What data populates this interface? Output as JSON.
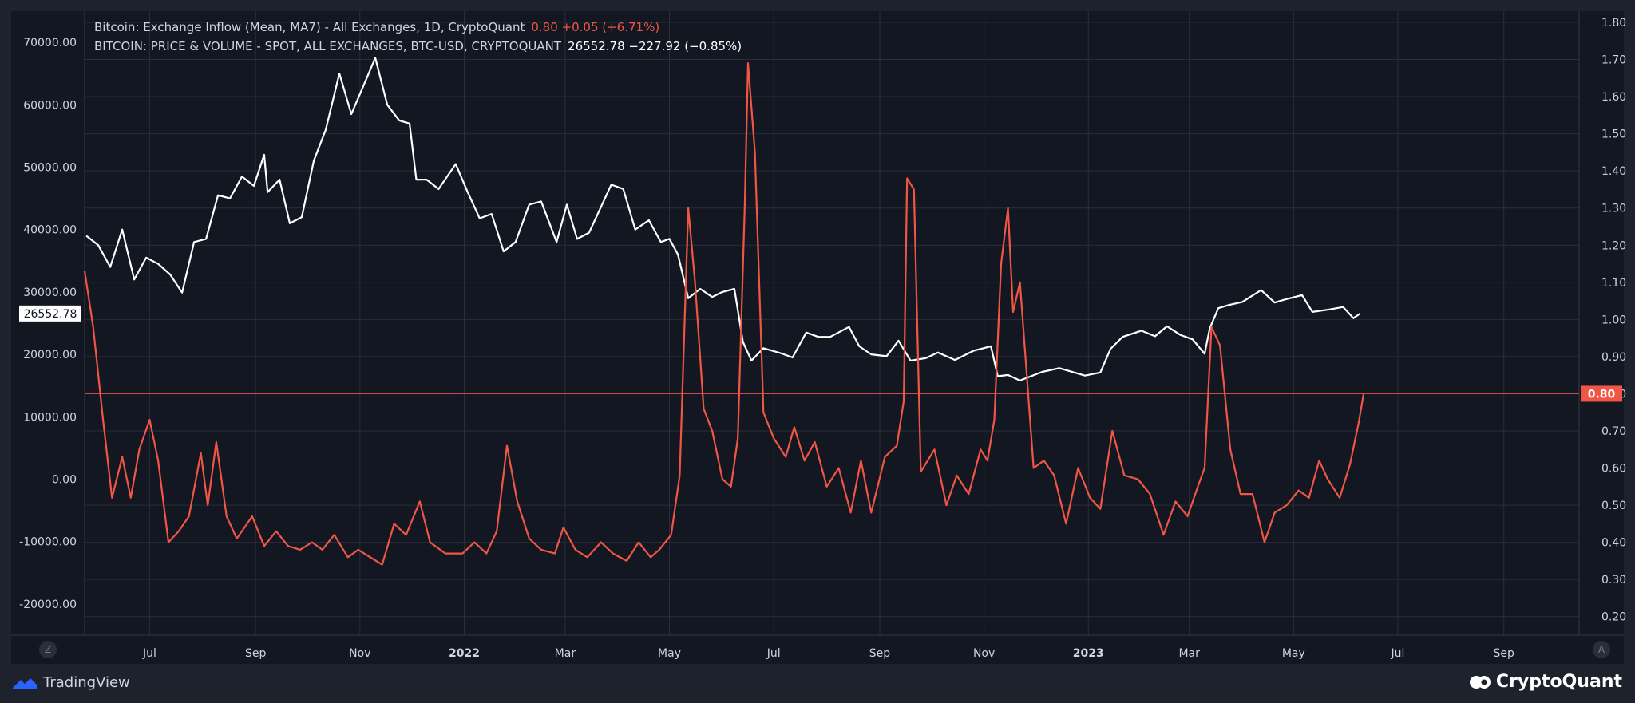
{
  "legend": {
    "line1_label": "Bitcoin: Exchange Inflow (Mean, MA7) - All Exchanges, 1D, CryptoQuant",
    "line1_value": "0.80  +0.05 (+6.71%)",
    "line2_label": "BITCOIN: PRICE & VOLUME - SPOT, ALL EXCHANGES, BTC-USD, CRYPTOQUANT",
    "line2_value": "26552.78  −227.92 (−0.85%)"
  },
  "footer": {
    "left_brand": "TradingView",
    "right_brand": "CryptoQuant"
  },
  "axis_buttons": {
    "left": "Z",
    "right": "A"
  },
  "colors": {
    "background": "#131722",
    "frame": "#1e222d",
    "price_line": "#ffffff",
    "inflow_line": "#f05545",
    "grid": "#2a2e39",
    "axis_text": "#d1d4dc"
  },
  "chart_data": {
    "type": "line",
    "x_ticks": [
      "Jul",
      "Sep",
      "Nov",
      "2022",
      "Mar",
      "May",
      "Jul",
      "Sep",
      "Nov",
      "2023",
      "Mar",
      "May",
      "Jul",
      "Sep"
    ],
    "x_tick_dates": [
      "2021-07-01",
      "2021-09-01",
      "2021-11-01",
      "2022-01-01",
      "2022-03-01",
      "2022-05-01",
      "2022-07-01",
      "2022-09-01",
      "2022-11-01",
      "2023-01-01",
      "2023-03-01",
      "2023-05-01",
      "2023-07-01",
      "2023-09-01"
    ],
    "xlim": [
      "2021-05-24",
      "2023-10-15"
    ],
    "left_axis": {
      "ylim": [
        -25000,
        75000
      ],
      "ticks": [
        "70000.00",
        "60000.00",
        "50000.00",
        "40000.00",
        "30000.00",
        "20000.00",
        "10000.00",
        "0.00",
        "-10000.00",
        "-20000.00"
      ]
    },
    "right_axis": {
      "ylim": [
        0.15,
        1.83
      ],
      "ticks": [
        "1.80",
        "1.70",
        "1.60",
        "1.50",
        "1.40",
        "1.30",
        "1.20",
        "1.10",
        "1.00",
        "0.90",
        "0.80",
        "0.70",
        "0.60",
        "0.50",
        "0.40",
        "0.30",
        "0.20"
      ]
    },
    "last_price_label": "26552.78",
    "last_price": 26552.78,
    "last_inflow_label": "0.80",
    "last_inflow": 0.8,
    "series": [
      {
        "name": "BITCOIN: PRICE & VOLUME - SPOT, ALL EXCHANGES, BTC-USD, CRYPTOQUANT",
        "axis": "left",
        "points": [
          [
            "2021-05-25",
            39000
          ],
          [
            "2021-06-01",
            37500
          ],
          [
            "2021-06-08",
            34000
          ],
          [
            "2021-06-15",
            40000
          ],
          [
            "2021-06-22",
            32000
          ],
          [
            "2021-06-29",
            35500
          ],
          [
            "2021-07-06",
            34500
          ],
          [
            "2021-07-13",
            32800
          ],
          [
            "2021-07-20",
            29900
          ],
          [
            "2021-07-27",
            38000
          ],
          [
            "2021-08-03",
            38500
          ],
          [
            "2021-08-10",
            45500
          ],
          [
            "2021-08-17",
            45000
          ],
          [
            "2021-08-24",
            48500
          ],
          [
            "2021-08-31",
            47000
          ],
          [
            "2021-09-06",
            52000
          ],
          [
            "2021-09-08",
            46000
          ],
          [
            "2021-09-15",
            48000
          ],
          [
            "2021-09-21",
            41000
          ],
          [
            "2021-09-28",
            42000
          ],
          [
            "2021-10-05",
            51000
          ],
          [
            "2021-10-12",
            56000
          ],
          [
            "2021-10-20",
            65000
          ],
          [
            "2021-10-27",
            58500
          ],
          [
            "2021-11-03",
            63000
          ],
          [
            "2021-11-10",
            67500
          ],
          [
            "2021-11-17",
            60000
          ],
          [
            "2021-11-24",
            57500
          ],
          [
            "2021-11-30",
            57000
          ],
          [
            "2021-12-04",
            48000
          ],
          [
            "2021-12-10",
            48000
          ],
          [
            "2021-12-17",
            46500
          ],
          [
            "2021-12-27",
            50500
          ],
          [
            "2022-01-03",
            46000
          ],
          [
            "2022-01-10",
            41800
          ],
          [
            "2022-01-17",
            42500
          ],
          [
            "2022-01-24",
            36500
          ],
          [
            "2022-01-31",
            38000
          ],
          [
            "2022-02-08",
            44000
          ],
          [
            "2022-02-15",
            44500
          ],
          [
            "2022-02-24",
            38000
          ],
          [
            "2022-03-02",
            44000
          ],
          [
            "2022-03-08",
            38500
          ],
          [
            "2022-03-15",
            39500
          ],
          [
            "2022-03-28",
            47200
          ],
          [
            "2022-04-04",
            46500
          ],
          [
            "2022-04-11",
            40000
          ],
          [
            "2022-04-19",
            41500
          ],
          [
            "2022-04-26",
            38000
          ],
          [
            "2022-05-01",
            38500
          ],
          [
            "2022-05-06",
            36000
          ],
          [
            "2022-05-12",
            29000
          ],
          [
            "2022-05-19",
            30500
          ],
          [
            "2022-05-26",
            29200
          ],
          [
            "2022-06-01",
            30000
          ],
          [
            "2022-06-08",
            30500
          ],
          [
            "2022-06-13",
            22000
          ],
          [
            "2022-06-18",
            19000
          ],
          [
            "2022-06-25",
            21000
          ],
          [
            "2022-07-05",
            20200
          ],
          [
            "2022-07-12",
            19500
          ],
          [
            "2022-07-20",
            23500
          ],
          [
            "2022-07-27",
            22800
          ],
          [
            "2022-08-03",
            22800
          ],
          [
            "2022-08-14",
            24400
          ],
          [
            "2022-08-20",
            21300
          ],
          [
            "2022-08-27",
            20000
          ],
          [
            "2022-09-05",
            19700
          ],
          [
            "2022-09-12",
            22200
          ],
          [
            "2022-09-19",
            19000
          ],
          [
            "2022-09-28",
            19400
          ],
          [
            "2022-10-05",
            20300
          ],
          [
            "2022-10-15",
            19100
          ],
          [
            "2022-10-26",
            20600
          ],
          [
            "2022-11-05",
            21300
          ],
          [
            "2022-11-09",
            16500
          ],
          [
            "2022-11-15",
            16700
          ],
          [
            "2022-11-22",
            15800
          ],
          [
            "2022-12-05",
            17200
          ],
          [
            "2022-12-15",
            17800
          ],
          [
            "2022-12-30",
            16600
          ],
          [
            "2023-01-08",
            17100
          ],
          [
            "2023-01-14",
            20900
          ],
          [
            "2023-01-21",
            22800
          ],
          [
            "2023-02-01",
            23800
          ],
          [
            "2023-02-09",
            22900
          ],
          [
            "2023-02-16",
            24500
          ],
          [
            "2023-02-24",
            23100
          ],
          [
            "2023-03-03",
            22400
          ],
          [
            "2023-03-10",
            20100
          ],
          [
            "2023-03-13",
            24200
          ],
          [
            "2023-03-18",
            27400
          ],
          [
            "2023-03-24",
            27900
          ],
          [
            "2023-04-01",
            28400
          ],
          [
            "2023-04-12",
            30300
          ],
          [
            "2023-04-20",
            28300
          ],
          [
            "2023-04-26",
            28800
          ],
          [
            "2023-05-06",
            29500
          ],
          [
            "2023-05-12",
            26800
          ],
          [
            "2023-05-22",
            27200
          ],
          [
            "2023-05-30",
            27600
          ],
          [
            "2023-06-05",
            25800
          ],
          [
            "2023-06-09",
            26552.78
          ]
        ]
      },
      {
        "name": "Bitcoin: Exchange Inflow (Mean, MA7) - All Exchanges, 1D, CryptoQuant",
        "axis": "right",
        "points": [
          [
            "2021-05-24",
            1.13
          ],
          [
            "2021-05-29",
            0.98
          ],
          [
            "2021-06-04",
            0.72
          ],
          [
            "2021-06-09",
            0.52
          ],
          [
            "2021-06-15",
            0.63
          ],
          [
            "2021-06-20",
            0.52
          ],
          [
            "2021-06-25",
            0.65
          ],
          [
            "2021-07-01",
            0.73
          ],
          [
            "2021-07-06",
            0.62
          ],
          [
            "2021-07-12",
            0.4
          ],
          [
            "2021-07-18",
            0.43
          ],
          [
            "2021-07-24",
            0.47
          ],
          [
            "2021-07-31",
            0.64
          ],
          [
            "2021-08-04",
            0.5
          ],
          [
            "2021-08-09",
            0.67
          ],
          [
            "2021-08-15",
            0.47
          ],
          [
            "2021-08-21",
            0.41
          ],
          [
            "2021-08-30",
            0.47
          ],
          [
            "2021-09-06",
            0.39
          ],
          [
            "2021-09-13",
            0.43
          ],
          [
            "2021-09-20",
            0.39
          ],
          [
            "2021-09-27",
            0.38
          ],
          [
            "2021-10-04",
            0.4
          ],
          [
            "2021-10-10",
            0.38
          ],
          [
            "2021-10-17",
            0.42
          ],
          [
            "2021-10-25",
            0.36
          ],
          [
            "2021-10-31",
            0.38
          ],
          [
            "2021-11-07",
            0.36
          ],
          [
            "2021-11-14",
            0.34
          ],
          [
            "2021-11-21",
            0.45
          ],
          [
            "2021-11-28",
            0.42
          ],
          [
            "2021-12-06",
            0.51
          ],
          [
            "2021-12-12",
            0.4
          ],
          [
            "2021-12-21",
            0.37
          ],
          [
            "2021-12-31",
            0.37
          ],
          [
            "2022-01-07",
            0.4
          ],
          [
            "2022-01-14",
            0.37
          ],
          [
            "2022-01-20",
            0.43
          ],
          [
            "2022-01-26",
            0.66
          ],
          [
            "2022-02-01",
            0.51
          ],
          [
            "2022-02-08",
            0.41
          ],
          [
            "2022-02-15",
            0.38
          ],
          [
            "2022-02-23",
            0.37
          ],
          [
            "2022-02-28",
            0.44
          ],
          [
            "2022-03-07",
            0.38
          ],
          [
            "2022-03-14",
            0.36
          ],
          [
            "2022-03-22",
            0.4
          ],
          [
            "2022-03-29",
            0.37
          ],
          [
            "2022-04-06",
            0.35
          ],
          [
            "2022-04-13",
            0.4
          ],
          [
            "2022-04-20",
            0.36
          ],
          [
            "2022-04-25",
            0.38
          ],
          [
            "2022-05-02",
            0.42
          ],
          [
            "2022-05-07",
            0.58
          ],
          [
            "2022-05-12",
            1.3
          ],
          [
            "2022-05-16",
            1.1
          ],
          [
            "2022-05-21",
            0.76
          ],
          [
            "2022-05-26",
            0.7
          ],
          [
            "2022-06-01",
            0.57
          ],
          [
            "2022-06-06",
            0.55
          ],
          [
            "2022-06-10",
            0.68
          ],
          [
            "2022-06-14",
            1.3
          ],
          [
            "2022-06-16",
            1.69
          ],
          [
            "2022-06-20",
            1.45
          ],
          [
            "2022-06-25",
            0.75
          ],
          [
            "2022-07-01",
            0.68
          ],
          [
            "2022-07-08",
            0.63
          ],
          [
            "2022-07-13",
            0.71
          ],
          [
            "2022-07-19",
            0.62
          ],
          [
            "2022-07-25",
            0.67
          ],
          [
            "2022-08-01",
            0.55
          ],
          [
            "2022-08-08",
            0.6
          ],
          [
            "2022-08-15",
            0.48
          ],
          [
            "2022-08-21",
            0.62
          ],
          [
            "2022-08-27",
            0.48
          ],
          [
            "2022-09-04",
            0.63
          ],
          [
            "2022-09-11",
            0.66
          ],
          [
            "2022-09-15",
            0.78
          ],
          [
            "2022-09-17",
            1.38
          ],
          [
            "2022-09-21",
            1.35
          ],
          [
            "2022-09-25",
            0.59
          ],
          [
            "2022-10-03",
            0.65
          ],
          [
            "2022-10-10",
            0.5
          ],
          [
            "2022-10-16",
            0.58
          ],
          [
            "2022-10-23",
            0.53
          ],
          [
            "2022-10-30",
            0.65
          ],
          [
            "2022-11-03",
            0.62
          ],
          [
            "2022-11-07",
            0.73
          ],
          [
            "2022-11-11",
            1.15
          ],
          [
            "2022-11-15",
            1.3
          ],
          [
            "2022-11-18",
            1.02
          ],
          [
            "2022-11-22",
            1.1
          ],
          [
            "2022-11-30",
            0.6
          ],
          [
            "2022-12-06",
            0.62
          ],
          [
            "2022-12-12",
            0.58
          ],
          [
            "2022-12-19",
            0.45
          ],
          [
            "2022-12-26",
            0.6
          ],
          [
            "2023-01-02",
            0.52
          ],
          [
            "2023-01-08",
            0.49
          ],
          [
            "2023-01-15",
            0.7
          ],
          [
            "2023-01-22",
            0.58
          ],
          [
            "2023-01-30",
            0.57
          ],
          [
            "2023-02-06",
            0.53
          ],
          [
            "2023-02-14",
            0.42
          ],
          [
            "2023-02-21",
            0.51
          ],
          [
            "2023-02-28",
            0.47
          ],
          [
            "2023-03-06",
            0.55
          ],
          [
            "2023-03-10",
            0.6
          ],
          [
            "2023-03-14",
            0.98
          ],
          [
            "2023-03-19",
            0.93
          ],
          [
            "2023-03-25",
            0.65
          ],
          [
            "2023-03-31",
            0.53
          ],
          [
            "2023-04-07",
            0.53
          ],
          [
            "2023-04-14",
            0.4
          ],
          [
            "2023-04-20",
            0.48
          ],
          [
            "2023-04-27",
            0.5
          ],
          [
            "2023-05-04",
            0.54
          ],
          [
            "2023-05-10",
            0.52
          ],
          [
            "2023-05-16",
            0.62
          ],
          [
            "2023-05-21",
            0.57
          ],
          [
            "2023-05-28",
            0.52
          ],
          [
            "2023-06-03",
            0.61
          ],
          [
            "2023-06-08",
            0.72
          ],
          [
            "2023-06-11",
            0.8
          ]
        ]
      }
    ]
  }
}
